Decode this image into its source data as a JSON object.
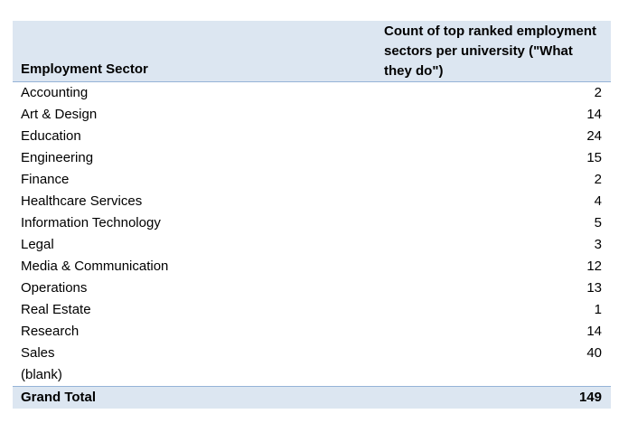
{
  "table": {
    "header": {
      "col1": "Employment Sector",
      "col2": "Count of top ranked employment sectors per university (\"What they do\")"
    },
    "rows": [
      {
        "label": "Accounting",
        "value": "2"
      },
      {
        "label": "Art & Design",
        "value": "14"
      },
      {
        "label": "Education",
        "value": "24"
      },
      {
        "label": "Engineering",
        "value": "15"
      },
      {
        "label": "Finance",
        "value": "2"
      },
      {
        "label": "Healthcare Services",
        "value": "4"
      },
      {
        "label": "Information Technology",
        "value": "5"
      },
      {
        "label": "Legal",
        "value": "3"
      },
      {
        "label": "Media & Communication",
        "value": "12"
      },
      {
        "label": "Operations",
        "value": "13"
      },
      {
        "label": "Real Estate",
        "value": "1"
      },
      {
        "label": "Research",
        "value": "14"
      },
      {
        "label": "Sales",
        "value": "40"
      },
      {
        "label": "(blank)",
        "value": ""
      }
    ],
    "total": {
      "label": "Grand Total",
      "value": "149"
    }
  },
  "colors": {
    "header_bg": "#dce6f1",
    "border": "#95b3d7"
  }
}
